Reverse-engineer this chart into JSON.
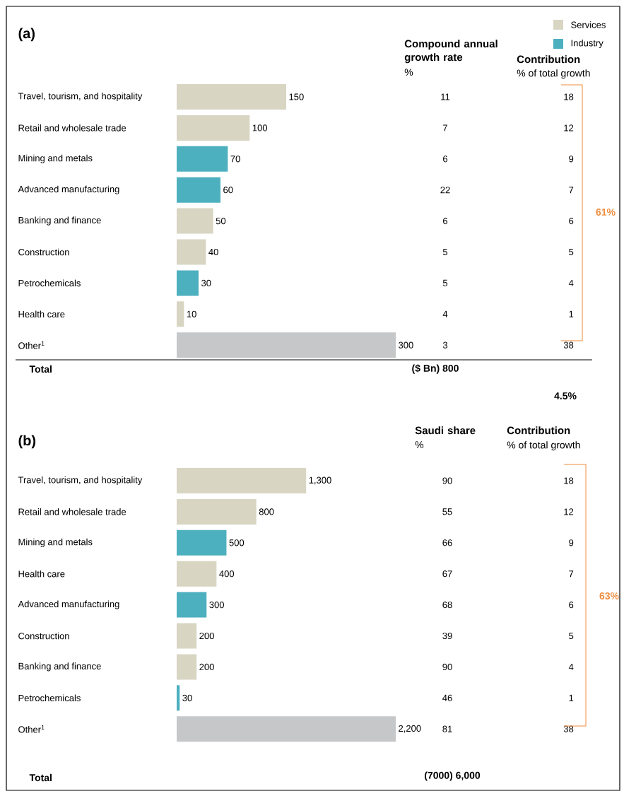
{
  "chart_data": [
    {
      "type": "bar",
      "title": "(a)",
      "orientation": "horizontal",
      "legend": "top right",
      "categories": [
        "Travel, tourism, and hospitality",
        "Retail and wholesale trade",
        "Mining and metals",
        "Advanced manufacturing",
        "Banking and finance",
        "Construction",
        "Petrochemicals",
        "Health care",
        "Other$^{1}$"
      ],
      "xlim": [
        0,
        300
      ],
      "series": [
        {
          "name": "Services",
          "color": "#d8d5c3",
          "values": [
            150,
            100,
            null,
            null,
            50,
            40,
            null,
            10,
            null
          ],
          "value_labels": [
            "150",
            "100",
            null,
            null,
            "50",
            "40",
            null,
            "10",
            null
          ]
        },
        {
          "name": "Industry",
          "color": "#4db0bf",
          "values": [
            null,
            null,
            70,
            60,
            null,
            null,
            30,
            null,
            null
          ],
          "value_labels": [
            null,
            null,
            "70",
            "60",
            null,
            null,
            "30",
            null,
            null
          ]
        },
        {
          "color": "#c6c7c9",
          "values": [
            null,
            null,
            null,
            null,
            null,
            null,
            null,
            null,
            300
          ],
          "value_labels": [
            null,
            null,
            null,
            null,
            null,
            null,
            null,
            null,
            "300"
          ]
        }
      ],
      "annotations": [
        "Total",
        "($ Bn) 800"
      ]
    },
    {
      "type": "other",
      "title": "Compound annual growth rate",
      "subtitle": "%",
      "values": [
        11,
        7,
        6,
        22,
        6,
        5,
        5,
        4,
        3
      ],
      "data_labels": true,
      "annotations": [
        "4.5%"
      ]
    },
    {
      "type": "other",
      "title": "Contribution",
      "subtitle": "% of total growth",
      "values": [
        18,
        12,
        9,
        7,
        6,
        5,
        4,
        1,
        38
      ],
      "data_labels": true,
      "annotations": [
        "61%"
      ]
    },
    {
      "type": "bar",
      "title": "(b)",
      "orientation": "horizontal",
      "categories": [
        "Travel, tourism, and hospitality",
        "Retail and wholesale trade",
        "Mining and metals",
        "Health care",
        "Advanced manufacturing",
        "Construction",
        "Banking and finance",
        "Petrochemicals",
        "Other$^{1}$"
      ],
      "xlim": [
        0,
        2200
      ],
      "series": [
        {
          "color": "#d8d5c3",
          "values": [
            1300,
            800,
            null,
            400,
            null,
            200,
            200,
            null,
            null
          ],
          "value_labels": [
            "1,300",
            "800",
            null,
            "400",
            null,
            "200",
            "200",
            null,
            null
          ]
        },
        {
          "color": "#4db0bf",
          "values": [
            null,
            null,
            500,
            null,
            300,
            null,
            null,
            30,
            null
          ],
          "value_labels": [
            null,
            null,
            "500",
            null,
            "300",
            null,
            null,
            "30",
            null
          ]
        },
        {
          "color": "#c6c7c9",
          "values": [
            null,
            null,
            null,
            null,
            null,
            null,
            null,
            null,
            2200
          ],
          "value_labels": [
            null,
            null,
            null,
            null,
            null,
            null,
            null,
            null,
            "2,200"
          ]
        }
      ],
      "annotations": [
        "Total",
        "(7000) 6,000"
      ]
    },
    {
      "type": "other",
      "title": "Saudi share",
      "subtitle": "%",
      "values": [
        90,
        55,
        66,
        67,
        68,
        39,
        90,
        46,
        81
      ],
      "data_labels": true
    },
    {
      "type": "other",
      "title": "Contribution",
      "subtitle": "% of total growth",
      "values": [
        18,
        12,
        9,
        7,
        6,
        5,
        4,
        1,
        38
      ],
      "data_labels": true,
      "annotations": [
        "63%"
      ]
    }
  ]
}
